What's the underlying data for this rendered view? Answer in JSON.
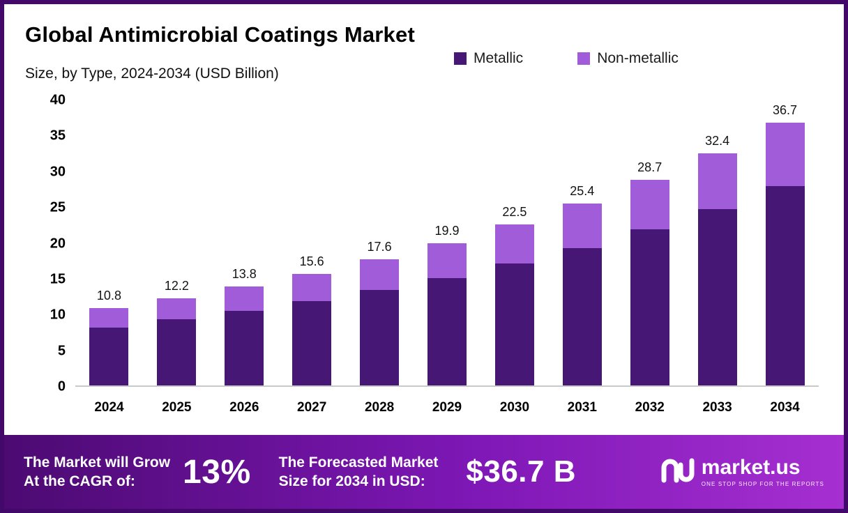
{
  "header": {
    "title": "Global Antimicrobial Coatings Market",
    "subtitle": "Size, by Type, 2024-2034 (USD Billion)"
  },
  "chart_data": {
    "type": "bar",
    "stacked": true,
    "title": "Global Antimicrobial Coatings Market Size, by Type, 2024-2034 (USD Billion)",
    "categories": [
      "2024",
      "2025",
      "2026",
      "2027",
      "2028",
      "2029",
      "2030",
      "2031",
      "2032",
      "2033",
      "2034"
    ],
    "series": [
      {
        "name": "Metallic",
        "color": "#461775",
        "values": [
          8.1,
          9.2,
          10.4,
          11.8,
          13.3,
          15.0,
          17.0,
          19.2,
          21.8,
          24.6,
          27.8
        ]
      },
      {
        "name": "Non-metallic",
        "color": "#a05cd9",
        "values": [
          2.7,
          3.0,
          3.4,
          3.8,
          4.3,
          4.9,
          5.5,
          6.2,
          6.9,
          7.8,
          8.9
        ]
      }
    ],
    "totals": [
      10.8,
      12.2,
      13.8,
      15.6,
      17.6,
      19.9,
      22.5,
      25.4,
      28.7,
      32.4,
      36.7
    ],
    "total_labels": [
      "10.8",
      "12.2",
      "13.8",
      "15.6",
      "17.6",
      "19.9",
      "22.5",
      "25.4",
      "28.7",
      "32.4",
      "36.7"
    ],
    "xlabel": "",
    "ylabel": "",
    "ylim": [
      0,
      40
    ],
    "yticks": [
      0,
      5,
      10,
      15,
      20,
      25,
      30,
      35,
      40
    ],
    "grid": false,
    "legend_position": "top-right"
  },
  "footer": {
    "cagr_label_line1": "The Market will Grow",
    "cagr_label_line2": "At the CAGR of:",
    "cagr_value": "13%",
    "forecast_label_line1": "The Forecasted Market",
    "forecast_label_line2": "Size for 2034 in USD:",
    "forecast_value": "$36.7 B",
    "brand": "market.us",
    "brand_tagline": "ONE STOP SHOP FOR THE REPORTS"
  },
  "colors": {
    "metallic": "#461775",
    "non_metallic": "#a05cd9",
    "border": "#42096b",
    "footer_gradient_start": "#4c0a72",
    "footer_gradient_end": "#a62fd1",
    "axis_line": "#c9c9c9"
  }
}
